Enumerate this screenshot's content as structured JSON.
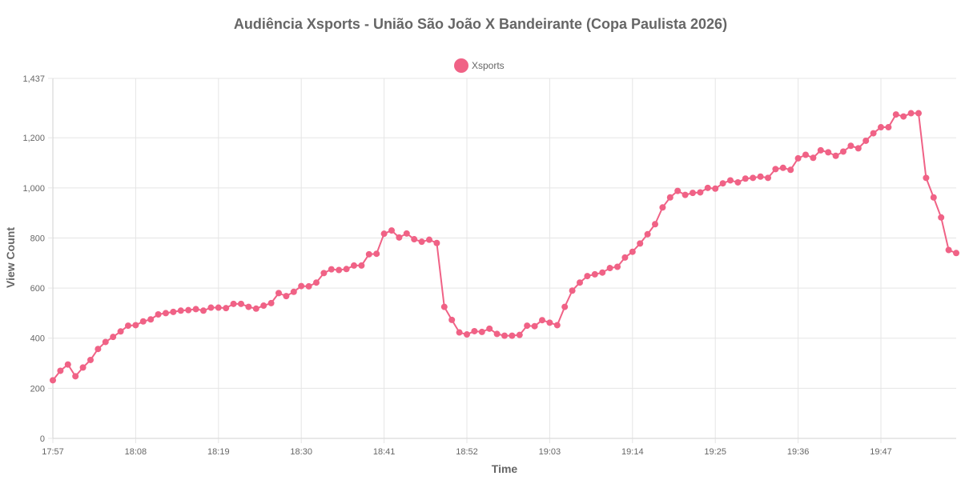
{
  "chart_data": {
    "type": "line",
    "title": "Audiência Xsports - União São João X Bandeirante (Copa Paulista 2026)",
    "xlabel": "Time",
    "ylabel": "View Count",
    "x_tick_labels": [
      "17:57",
      "18:08",
      "18:19",
      "18:30",
      "18:41",
      "18:52",
      "19:03",
      "19:14",
      "19:25",
      "19:36",
      "19:47"
    ],
    "y_tick_labels": [
      "0",
      "200",
      "400",
      "600",
      "800",
      "1,000",
      "1,200",
      "1,437"
    ],
    "y_tick_values": [
      0,
      200,
      400,
      600,
      800,
      1000,
      1200,
      1437
    ],
    "ylim": [
      0,
      1437
    ],
    "grid": true,
    "legend_position": "top-center",
    "series": [
      {
        "name": "Xsports",
        "color": "#f06286",
        "values": [
          232,
          270,
          295,
          248,
          283,
          313,
          357,
          385,
          405,
          427,
          450,
          452,
          467,
          475,
          495,
          500,
          505,
          510,
          512,
          516,
          510,
          522,
          522,
          520,
          537,
          537,
          525,
          518,
          530,
          540,
          580,
          568,
          585,
          608,
          607,
          622,
          660,
          675,
          672,
          676,
          690,
          690,
          735,
          737,
          817,
          830,
          802,
          818,
          795,
          785,
          793,
          780,
          525,
          473,
          423,
          415,
          428,
          425,
          438,
          417,
          410,
          410,
          413,
          450,
          448,
          472,
          462,
          452,
          525,
          590,
          622,
          648,
          655,
          662,
          680,
          685,
          722,
          745,
          778,
          815,
          855,
          922,
          962,
          988,
          972,
          980,
          982,
          1000,
          997,
          1018,
          1030,
          1022,
          1037,
          1040,
          1045,
          1040,
          1075,
          1080,
          1072,
          1118,
          1132,
          1120,
          1150,
          1142,
          1128,
          1145,
          1168,
          1158,
          1188,
          1218,
          1242,
          1242,
          1293,
          1285,
          1298,
          1298,
          1040,
          962,
          882,
          752,
          740
        ]
      }
    ]
  }
}
